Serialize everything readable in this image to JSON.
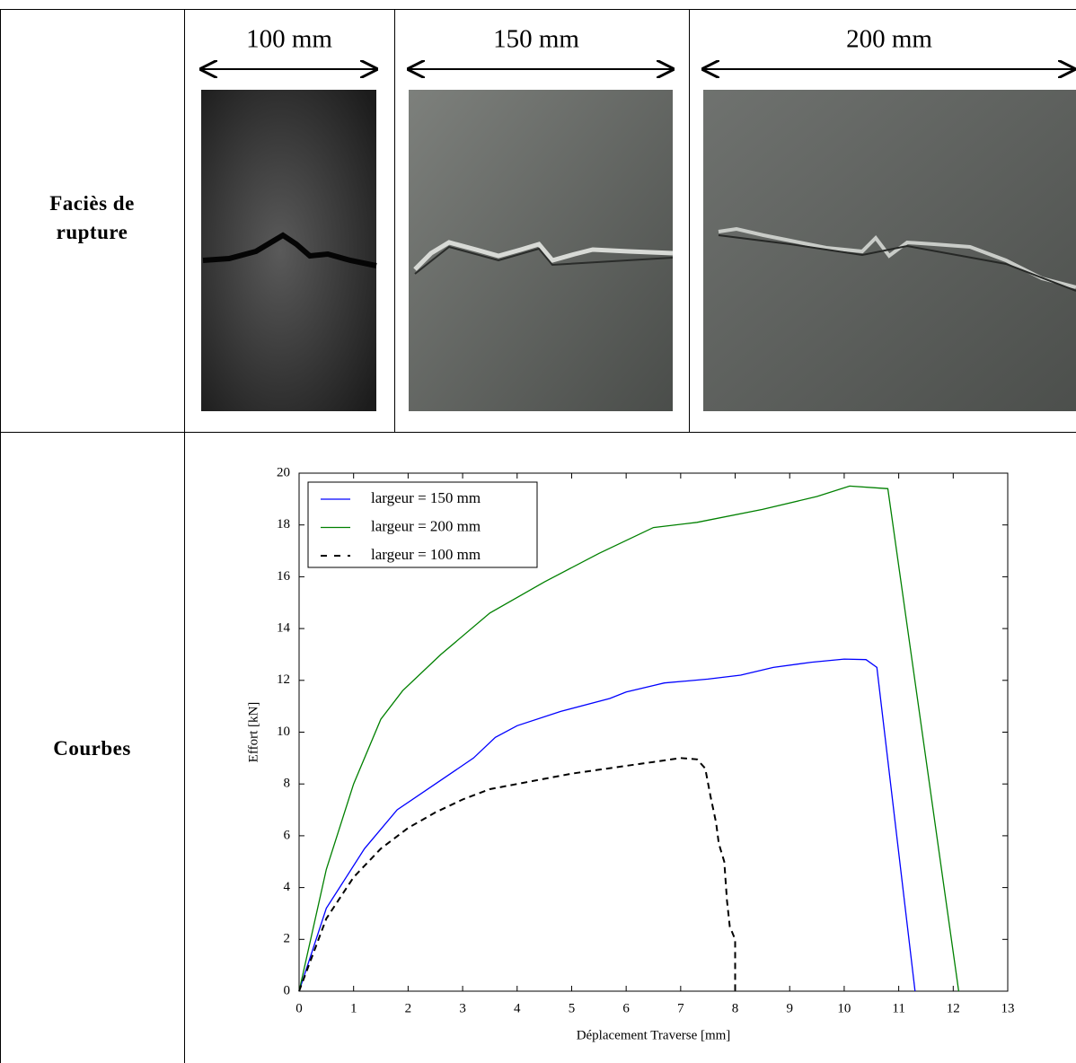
{
  "table": {
    "row_labels": [
      "Faciès de rupture",
      "Courbes"
    ],
    "column_headers": [
      "100 mm",
      "150 mm",
      "200 mm"
    ]
  },
  "chart_data": {
    "type": "line",
    "xlabel": "Déplacement Traverse [mm]",
    "ylabel": "Effort [kN]",
    "xlim": [
      0,
      13
    ],
    "ylim": [
      0,
      20
    ],
    "xticks": [
      0,
      1,
      2,
      3,
      4,
      5,
      6,
      7,
      8,
      9,
      10,
      11,
      12,
      13
    ],
    "yticks": [
      0,
      2,
      4,
      6,
      8,
      10,
      12,
      14,
      16,
      18,
      20
    ],
    "legend": "upper left",
    "series": [
      {
        "name": "largeur = 150 mm",
        "color": "#0000ff",
        "linestyle": "solid",
        "x": [
          0,
          0.5,
          1.2,
          1.8,
          2.5,
          3.2,
          3.6,
          4.0,
          4.8,
          5.7,
          6.0,
          6.7,
          7.5,
          8.1,
          8.7,
          9.4,
          10.0,
          10.4,
          10.6,
          11.3
        ],
        "values": [
          0,
          3.2,
          5.5,
          7.0,
          8.0,
          9.0,
          9.8,
          10.25,
          10.8,
          11.3,
          11.55,
          11.9,
          12.05,
          12.2,
          12.5,
          12.7,
          12.82,
          12.8,
          12.5,
          0
        ]
      },
      {
        "name": "largeur = 200 mm",
        "color": "#008000",
        "linestyle": "solid",
        "x": [
          0,
          0.5,
          1.0,
          1.5,
          1.9,
          2.6,
          3.5,
          4.5,
          5.5,
          6.5,
          7.3,
          8.5,
          9.5,
          10.1,
          10.8,
          12.1
        ],
        "values": [
          0,
          4.7,
          8.0,
          10.5,
          11.6,
          13.0,
          14.6,
          15.8,
          16.9,
          17.9,
          18.1,
          18.6,
          19.1,
          19.5,
          19.4,
          0
        ]
      },
      {
        "name": "largeur = 100 mm",
        "color": "#000000",
        "linestyle": "dashed",
        "x": [
          0,
          0.5,
          1.0,
          1.5,
          2.0,
          2.5,
          3.0,
          3.5,
          4.0,
          5.0,
          6.0,
          6.5,
          7.0,
          7.3,
          7.45,
          7.55,
          7.65,
          7.7,
          7.8,
          7.85,
          7.9,
          8.0,
          8.0
        ],
        "values": [
          0,
          2.8,
          4.4,
          5.5,
          6.3,
          6.9,
          7.4,
          7.8,
          8.0,
          8.4,
          8.7,
          8.85,
          9.0,
          8.95,
          8.6,
          7.5,
          6.5,
          5.7,
          5.0,
          3.5,
          2.5,
          2.0,
          0
        ]
      }
    ]
  }
}
